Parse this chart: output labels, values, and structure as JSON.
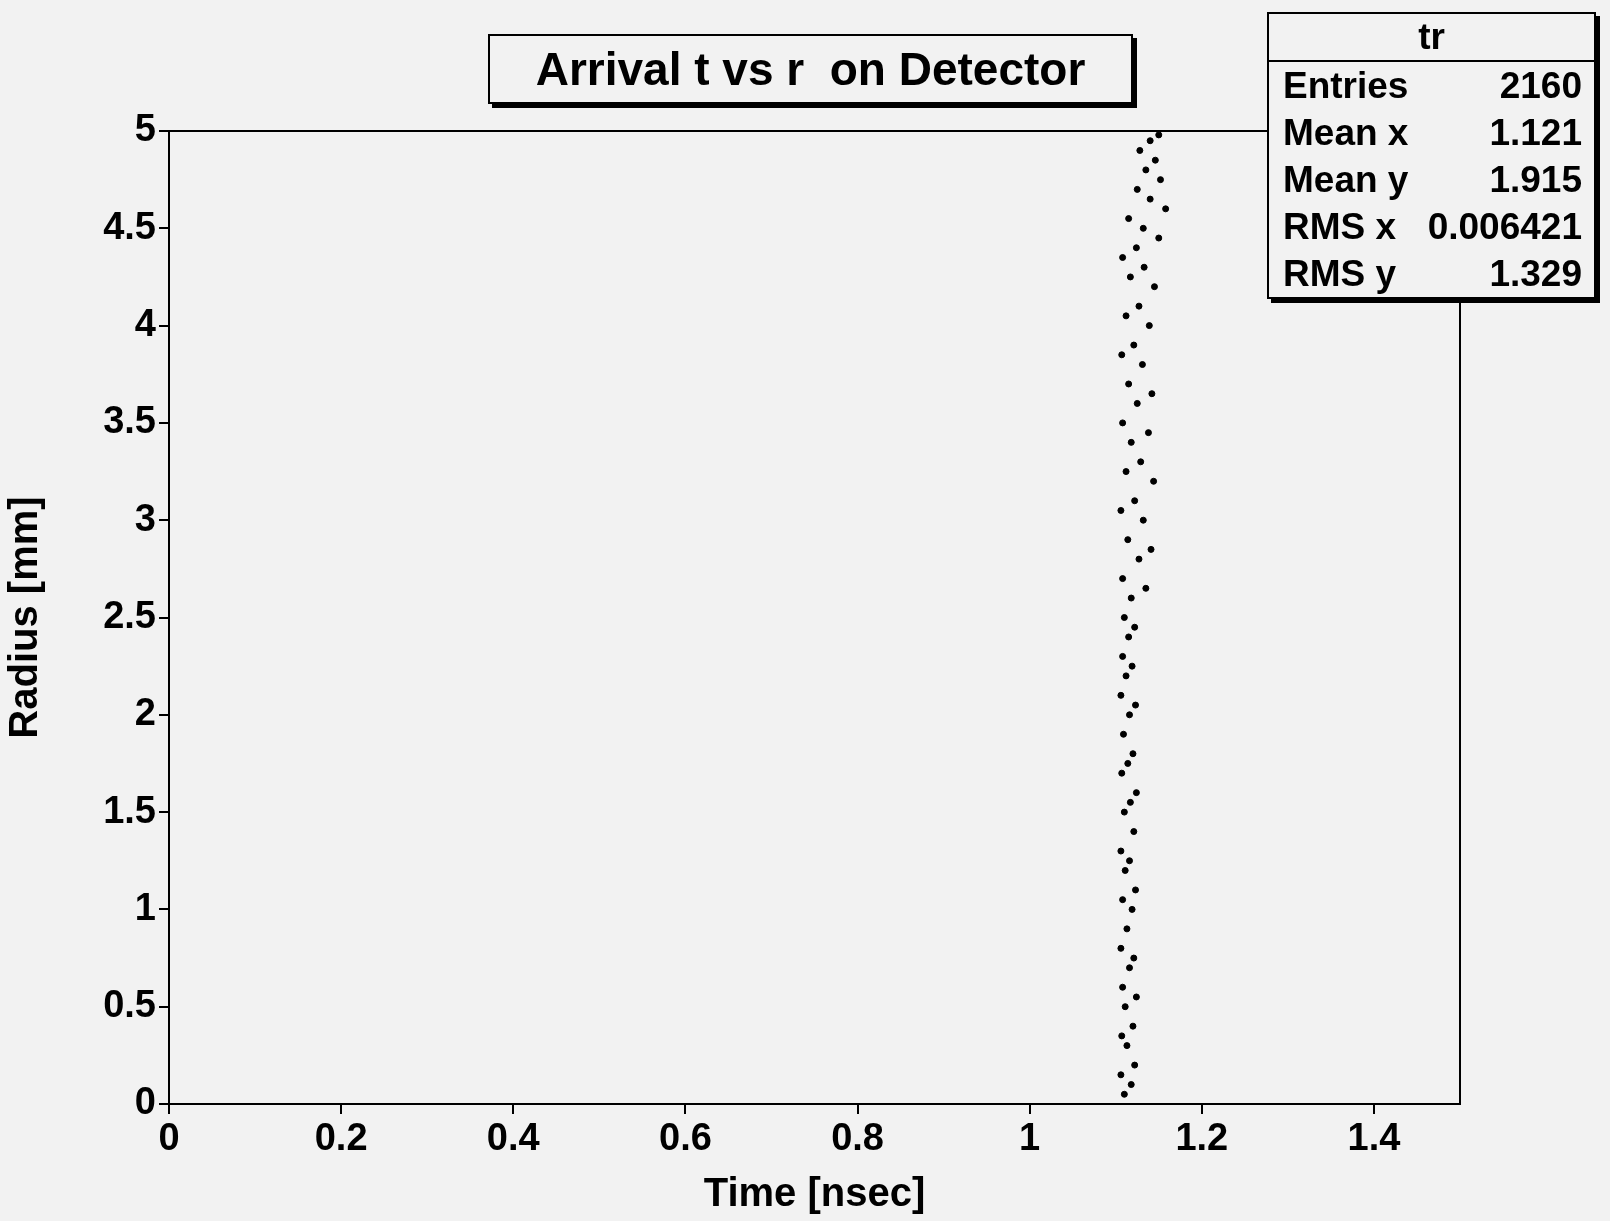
{
  "chart_data": {
    "type": "scatter",
    "title": "Arrival t vs r  on Detector",
    "xlabel": "Time [nsec]",
    "ylabel": "Radius [mm]",
    "xlim": [
      0,
      1.5
    ],
    "xticks": [
      0,
      0.2,
      0.4,
      0.6,
      0.8,
      1,
      1.2,
      1.4
    ],
    "ylim": [
      0,
      5
    ],
    "yticks": [
      0,
      0.5,
      1,
      1.5,
      2,
      2.5,
      3,
      3.5,
      4,
      4.5,
      5
    ],
    "marker": "circle",
    "annotations": [
      "tr",
      "Entries",
      "2160",
      "Mean x",
      "1.121",
      "Mean y",
      "1.915",
      "RMS x",
      "0.006421",
      "RMS y",
      "1.329"
    ],
    "series": [
      {
        "color": "#000000",
        "x": [
          1.11,
          1.118,
          1.106,
          1.122,
          1.113,
          1.107,
          1.12,
          1.111,
          1.124,
          1.108,
          1.116,
          1.121,
          1.106,
          1.113,
          1.119,
          1.108,
          1.123,
          1.111,
          1.116,
          1.106,
          1.121,
          1.11,
          1.117,
          1.124,
          1.107,
          1.114,
          1.12,
          1.109,
          1.116,
          1.123,
          1.106,
          1.112,
          1.119,
          1.108,
          1.115,
          1.122,
          1.11,
          1.118,
          1.135,
          1.108,
          1.127,
          1.141,
          1.114,
          1.132,
          1.106,
          1.122,
          1.144,
          1.112,
          1.129,
          1.118,
          1.138,
          1.108,
          1.125,
          1.142,
          1.115,
          1.131,
          1.107,
          1.121,
          1.139,
          1.112,
          1.127,
          1.145,
          1.117,
          1.133,
          1.108,
          1.124,
          1.15,
          1.132,
          1.115,
          1.158,
          1.14,
          1.125,
          1.152,
          1.135,
          1.146,
          1.128,
          1.14,
          1.15
        ],
        "values": [
          0.05,
          0.1,
          0.15,
          0.2,
          0.3,
          0.35,
          0.4,
          0.5,
          0.55,
          0.6,
          0.7,
          0.75,
          0.8,
          0.9,
          1.0,
          1.05,
          1.1,
          1.2,
          1.25,
          1.3,
          1.4,
          1.5,
          1.55,
          1.6,
          1.7,
          1.75,
          1.8,
          1.9,
          2.0,
          2.05,
          2.1,
          2.2,
          2.25,
          2.3,
          2.4,
          2.45,
          2.5,
          2.6,
          2.65,
          2.7,
          2.8,
          2.85,
          2.9,
          3.0,
          3.05,
          3.1,
          3.2,
          3.25,
          3.3,
          3.4,
          3.45,
          3.5,
          3.6,
          3.65,
          3.7,
          3.8,
          3.85,
          3.9,
          4.0,
          4.05,
          4.1,
          4.2,
          4.25,
          4.3,
          4.35,
          4.4,
          4.45,
          4.5,
          4.55,
          4.6,
          4.65,
          4.7,
          4.75,
          4.8,
          4.85,
          4.9,
          4.95,
          4.98
        ]
      }
    ]
  }
}
